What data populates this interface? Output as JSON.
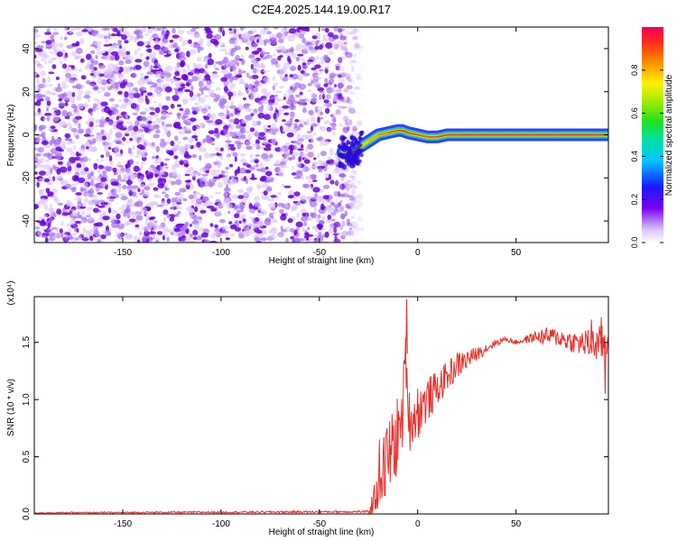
{
  "title": "C2E4.2025.144.19.00.R17",
  "colors": {
    "snr_line": "#e8302a",
    "ridge_core": "#e8302a",
    "ridge_mid": "#39d24a",
    "ridge_outer": "#1a2bff",
    "noise_dark": "#6a00e0",
    "noise_mid": "#a46cf2",
    "noise_light": "#d8c2fb"
  },
  "chart_data": [
    {
      "type": "heatmap",
      "xlabel": "Height of straight line (km)",
      "ylabel": "Frequency (Hz)",
      "xlim": [
        -195,
        97
      ],
      "ylim": [
        -50,
        50
      ],
      "xticks": [
        -150,
        -100,
        -50,
        0,
        50
      ],
      "yticks": [
        -40,
        -20,
        0,
        20,
        40
      ],
      "noise_region": [
        -195,
        -33
      ],
      "ridge": {
        "x": [
          -38,
          -35,
          -30,
          -25,
          -20,
          -15,
          -10,
          -8,
          -5,
          0,
          5,
          10,
          15,
          20,
          30,
          40,
          50,
          60,
          70,
          80,
          90,
          97
        ],
        "y": [
          -8,
          -9,
          -6,
          -3,
          0,
          1,
          2,
          2,
          1,
          0,
          -1,
          -1,
          0,
          0,
          0,
          0,
          0,
          0,
          0,
          0,
          0,
          0
        ],
        "amplitude": [
          0.25,
          0.35,
          0.45,
          0.55,
          0.65,
          0.75,
          0.85,
          0.9,
          0.85,
          0.8,
          0.78,
          0.82,
          0.88,
          0.9,
          0.9,
          0.9,
          0.9,
          0.9,
          0.9,
          0.9,
          0.9,
          0.9
        ]
      },
      "colorbar": {
        "label": "Normalized spectral amplitude",
        "range": [
          0,
          1
        ],
        "ticks": [
          "0.0",
          "0.2",
          "0.4",
          "0.6",
          "0.8"
        ]
      }
    },
    {
      "type": "line",
      "xlabel": "Height of straight line (km)",
      "ylabel": "SNR (10 * v/v)",
      "scale_label": "(x10⁴)",
      "xlim": [
        -195,
        97
      ],
      "ylim": [
        0,
        1.9
      ],
      "xticks": [
        -150,
        -100,
        -50,
        0,
        50
      ],
      "yticks": [
        "0.0",
        "0.5",
        "1.0",
        "1.5"
      ],
      "envelope": {
        "x": [
          -195,
          -25,
          -22,
          -20,
          -17,
          -15,
          -12,
          -10,
          -8,
          -6,
          -5,
          -4,
          -2,
          0,
          5,
          10,
          15,
          20,
          25,
          30,
          35,
          40,
          45,
          50,
          60,
          70,
          80,
          90,
          97
        ],
        "y": [
          0.01,
          0.02,
          0.1,
          0.35,
          0.4,
          0.5,
          0.6,
          0.7,
          0.8,
          1.4,
          1.0,
          0.8,
          0.85,
          0.9,
          1.0,
          1.1,
          1.2,
          1.3,
          1.35,
          1.4,
          1.45,
          1.5,
          1.53,
          1.5,
          1.55,
          1.55,
          1.5,
          1.48,
          1.5
        ]
      },
      "noise": {
        "x": [
          -195,
          -25,
          -20,
          -15,
          -10,
          -5,
          0,
          10,
          20,
          30,
          40,
          50,
          60,
          65,
          70,
          80,
          90,
          97
        ],
        "amp": [
          0.005,
          0.01,
          0.3,
          0.35,
          0.35,
          0.25,
          0.25,
          0.15,
          0.12,
          0.06,
          0.03,
          0.02,
          0.05,
          0.08,
          0.08,
          0.1,
          0.15,
          0.18
        ]
      },
      "peaks": [
        {
          "x": -6.0,
          "y": 1.88
        },
        {
          "x": 88,
          "y": 1.7
        },
        {
          "x": 93,
          "y": 1.72
        },
        {
          "x": 95,
          "y": 1.05
        }
      ]
    }
  ]
}
